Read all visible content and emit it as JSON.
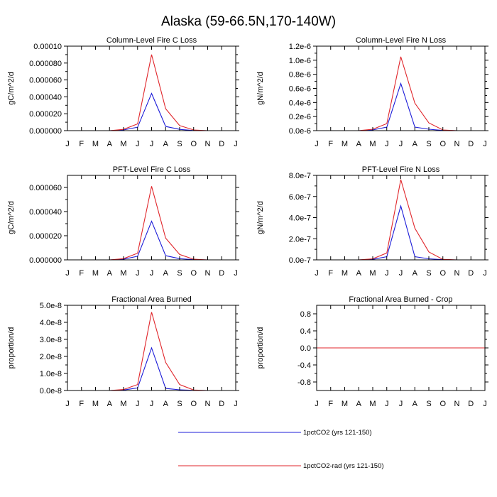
{
  "title": "Alaska (59-66.5N,170-140W)",
  "months": [
    "J",
    "F",
    "M",
    "A",
    "M",
    "J",
    "J",
    "A",
    "S",
    "O",
    "N",
    "D",
    "J"
  ],
  "colors": {
    "blue": "#1c1cd8",
    "red": "#e0262b"
  },
  "legend": [
    {
      "label": "1pctCO2 (yrs 121-150)",
      "color": "#1c1cd8"
    },
    {
      "label": "1pctCO2-rad (yrs 121-150)",
      "color": "#e0262b"
    }
  ],
  "chart_data": [
    {
      "type": "line",
      "title": "Column-Level Fire C Loss",
      "ylabel": "gC/m^2/d",
      "ylim": [
        0,
        0.0001
      ],
      "yticks": [
        0,
        2e-05,
        4e-05,
        6e-05,
        8e-05,
        0.0001
      ],
      "ytick_labels": [
        "0.000000",
        "0.000020",
        "0.000040",
        "0.000060",
        "0.000080",
        "0.00010"
      ],
      "x": [
        "J",
        "F",
        "M",
        "A",
        "M",
        "J",
        "J",
        "A",
        "S",
        "O",
        "N",
        "D"
      ],
      "series": [
        {
          "name": "1pctCO2 (yrs 121-150)",
          "color": "#1c1cd8",
          "values": [
            0,
            0,
            0,
            0,
            8e-07,
            4e-06,
            4.4e-05,
            5e-06,
            1.5e-06,
            2e-07,
            0,
            0
          ]
        },
        {
          "name": "1pctCO2-rad (yrs 121-150)",
          "color": "#e0262b",
          "values": [
            0,
            0,
            0,
            0,
            1.5e-06,
            8e-06,
            9e-05,
            2.6e-05,
            6e-06,
            8e-07,
            0,
            0
          ]
        }
      ]
    },
    {
      "type": "line",
      "title": "Column-Level Fire N Loss",
      "ylabel": "gN/m^2/d",
      "ylim": [
        0,
        1.2e-06
      ],
      "yticks": [
        0,
        2e-07,
        4e-07,
        6e-07,
        8e-07,
        1e-06,
        1.2e-06
      ],
      "ytick_labels": [
        "0.0e-6",
        "0.2e-6",
        "0.4e-6",
        "0.6e-6",
        "0.8e-6",
        "1.0e-6",
        "1.2e-6"
      ],
      "x": [
        "J",
        "F",
        "M",
        "A",
        "M",
        "J",
        "J",
        "A",
        "S",
        "O",
        "N",
        "D"
      ],
      "series": [
        {
          "name": "1pctCO2 (yrs 121-150)",
          "color": "#1c1cd8",
          "values": [
            0,
            0,
            0,
            0,
            1e-08,
            5e-08,
            6.7e-07,
            5e-08,
            2e-08,
            3e-09,
            0,
            0
          ]
        },
        {
          "name": "1pctCO2-rad (yrs 121-150)",
          "color": "#e0262b",
          "values": [
            0,
            0,
            0,
            0,
            2e-08,
            1e-07,
            1.05e-06,
            3.9e-07,
            1.1e-07,
            1e-08,
            0,
            0
          ]
        }
      ]
    },
    {
      "type": "line",
      "title": "PFT-Level Fire C Loss",
      "ylabel": "gC/m^2/d",
      "ylim": [
        0,
        7e-05
      ],
      "yticks": [
        0,
        2e-05,
        4e-05,
        6e-05
      ],
      "ytick_labels": [
        "0.000000",
        "0.000020",
        "0.000040",
        "0.000060"
      ],
      "x": [
        "J",
        "F",
        "M",
        "A",
        "M",
        "J",
        "J",
        "A",
        "S",
        "O",
        "N",
        "D"
      ],
      "series": [
        {
          "name": "1pctCO2 (yrs 121-150)",
          "color": "#1c1cd8",
          "values": [
            0,
            0,
            0,
            0,
            5e-07,
            3e-06,
            3.2e-05,
            3.5e-06,
            1e-06,
            2e-07,
            0,
            0
          ]
        },
        {
          "name": "1pctCO2-rad (yrs 121-150)",
          "color": "#e0262b",
          "values": [
            0,
            0,
            0,
            0,
            1e-06,
            5.5e-06,
            6.1e-05,
            1.8e-05,
            4.5e-06,
            5e-07,
            0,
            0
          ]
        }
      ]
    },
    {
      "type": "line",
      "title": "PFT-Level Fire N Loss",
      "ylabel": "gN/m^2/d",
      "ylim": [
        0,
        8e-07
      ],
      "yticks": [
        0,
        2e-07,
        4e-07,
        6e-07,
        8e-07
      ],
      "ytick_labels": [
        "0.0e-7",
        "2.0e-7",
        "4.0e-7",
        "6.0e-7",
        "8.0e-7"
      ],
      "x": [
        "J",
        "F",
        "M",
        "A",
        "M",
        "J",
        "J",
        "A",
        "S",
        "O",
        "N",
        "D"
      ],
      "series": [
        {
          "name": "1pctCO2 (yrs 121-150)",
          "color": "#1c1cd8",
          "values": [
            0,
            0,
            0,
            0,
            5e-09,
            3e-08,
            5.1e-07,
            3e-08,
            1e-08,
            2e-09,
            0,
            0
          ]
        },
        {
          "name": "1pctCO2-rad (yrs 121-150)",
          "color": "#e0262b",
          "values": [
            0,
            0,
            0,
            0,
            1e-08,
            6.5e-08,
            7.6e-07,
            3e-07,
            7.5e-08,
            5e-09,
            0,
            0
          ]
        }
      ]
    },
    {
      "type": "line",
      "title": "Fractional Area Burned",
      "ylabel": "proportion/d",
      "ylim": [
        0,
        5e-08
      ],
      "yticks": [
        0,
        1e-08,
        2e-08,
        3e-08,
        4e-08,
        5e-08
      ],
      "ytick_labels": [
        "0.0e-8",
        "1.0e-8",
        "2.0e-8",
        "3.0e-8",
        "4.0e-8",
        "5.0e-8"
      ],
      "x": [
        "J",
        "F",
        "M",
        "A",
        "M",
        "J",
        "J",
        "A",
        "S",
        "O",
        "N",
        "D"
      ],
      "series": [
        {
          "name": "1pctCO2 (yrs 121-150)",
          "color": "#1c1cd8",
          "values": [
            0,
            0,
            0,
            0,
            3e-10,
            1.5e-09,
            2.5e-08,
            1.2e-09,
            4e-10,
            1e-10,
            0,
            0
          ]
        },
        {
          "name": "1pctCO2-rad (yrs 121-150)",
          "color": "#e0262b",
          "values": [
            0,
            0,
            0,
            0,
            6e-10,
            3.5e-09,
            4.6e-08,
            1.65e-08,
            3.5e-09,
            3e-10,
            0,
            0
          ]
        }
      ]
    },
    {
      "type": "line",
      "title": "Fractional Area Burned - Crop",
      "ylabel": "proportion/d",
      "ylim": [
        -1,
        1
      ],
      "yticks": [
        -0.8,
        -0.4,
        0,
        0.4,
        0.8
      ],
      "ytick_labels": [
        "-0.8",
        "-0.4",
        "0.0",
        "0.4",
        "0.8"
      ],
      "x": [
        "J",
        "F",
        "M",
        "A",
        "M",
        "J",
        "J",
        "A",
        "S",
        "O",
        "N",
        "D"
      ],
      "series": [
        {
          "name": "1pctCO2 (yrs 121-150)",
          "color": "#1c1cd8",
          "values": [
            0,
            0,
            0,
            0,
            0,
            0,
            0,
            0,
            0,
            0,
            0,
            0
          ]
        },
        {
          "name": "1pctCO2-rad (yrs 121-150)",
          "color": "#e0262b",
          "values": [
            0,
            0,
            0,
            0,
            0,
            0,
            0,
            0,
            0,
            0,
            0,
            0
          ]
        }
      ]
    }
  ]
}
